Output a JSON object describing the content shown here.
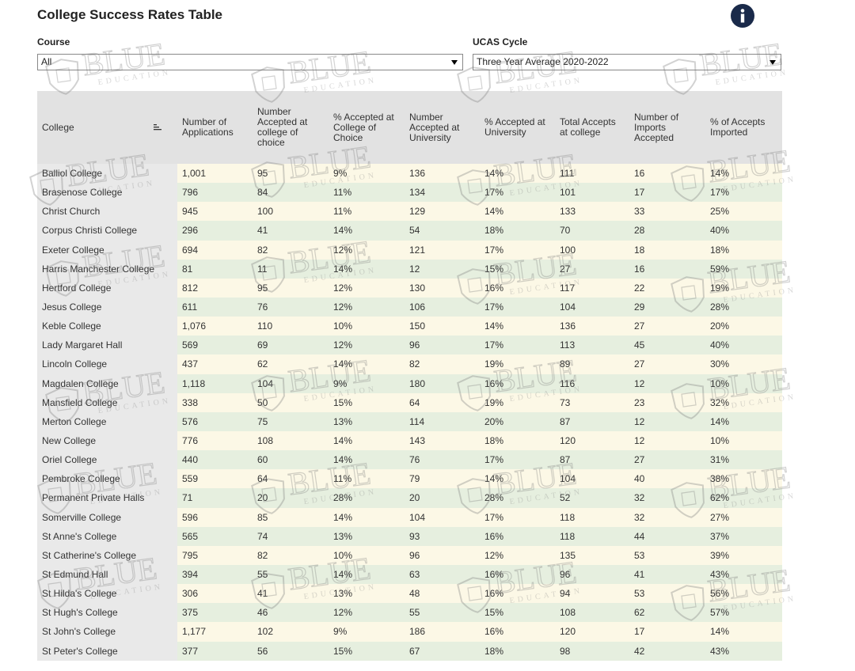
{
  "header": {
    "title": "College Success Rates Table"
  },
  "filters": [
    {
      "label": "Course",
      "value": "All"
    },
    {
      "label": "UCAS Cycle",
      "value": "Three Year Average 2020-2022"
    }
  ],
  "watermark": {
    "brand": "BLUE",
    "tagline": "EDUCATION"
  },
  "table": {
    "headers": [
      "College",
      "Number of Applications",
      "Number Accepted at college of choice",
      "% Accepted at College of Choice",
      "Number Accepted at University",
      "% Accepted at University",
      "Total Accepts at college",
      "Number of Imports Accepted",
      "% of Accepts Imported"
    ],
    "rows": [
      [
        "Balliol College",
        "1,001",
        "95",
        "9%",
        "136",
        "14%",
        "111",
        "16",
        "14%"
      ],
      [
        "Brasenose College",
        "796",
        "84",
        "11%",
        "134",
        "17%",
        "101",
        "17",
        "17%"
      ],
      [
        "Christ Church",
        "945",
        "100",
        "11%",
        "129",
        "14%",
        "133",
        "33",
        "25%"
      ],
      [
        "Corpus Christi College",
        "296",
        "41",
        "14%",
        "54",
        "18%",
        "70",
        "28",
        "40%"
      ],
      [
        "Exeter College",
        "694",
        "82",
        "12%",
        "121",
        "17%",
        "100",
        "18",
        "18%"
      ],
      [
        "Harris Manchester College",
        "81",
        "11",
        "14%",
        "12",
        "15%",
        "27",
        "16",
        "59%"
      ],
      [
        "Hertford College",
        "812",
        "95",
        "12%",
        "130",
        "16%",
        "117",
        "22",
        "19%"
      ],
      [
        "Jesus College",
        "611",
        "76",
        "12%",
        "106",
        "17%",
        "104",
        "29",
        "28%"
      ],
      [
        "Keble College",
        "1,076",
        "110",
        "10%",
        "150",
        "14%",
        "136",
        "27",
        "20%"
      ],
      [
        "Lady Margaret Hall",
        "569",
        "69",
        "12%",
        "96",
        "17%",
        "113",
        "45",
        "40%"
      ],
      [
        "Lincoln College",
        "437",
        "62",
        "14%",
        "82",
        "19%",
        "89",
        "27",
        "30%"
      ],
      [
        "Magdalen College",
        "1,118",
        "104",
        "9%",
        "180",
        "16%",
        "116",
        "12",
        "10%"
      ],
      [
        "Mansfield College",
        "338",
        "50",
        "15%",
        "64",
        "19%",
        "73",
        "23",
        "32%"
      ],
      [
        "Merton College",
        "576",
        "75",
        "13%",
        "114",
        "20%",
        "87",
        "12",
        "14%"
      ],
      [
        "New College",
        "776",
        "108",
        "14%",
        "143",
        "18%",
        "120",
        "12",
        "10%"
      ],
      [
        "Oriel College",
        "440",
        "60",
        "14%",
        "76",
        "17%",
        "87",
        "27",
        "31%"
      ],
      [
        "Pembroke College",
        "559",
        "64",
        "11%",
        "79",
        "14%",
        "104",
        "40",
        "38%"
      ],
      [
        "Permanent Private Halls",
        "71",
        "20",
        "28%",
        "20",
        "28%",
        "52",
        "32",
        "62%"
      ],
      [
        "Somerville College",
        "596",
        "85",
        "14%",
        "104",
        "17%",
        "118",
        "32",
        "27%"
      ],
      [
        "St Anne's College",
        "565",
        "74",
        "13%",
        "93",
        "16%",
        "118",
        "44",
        "37%"
      ],
      [
        "St Catherine's College",
        "795",
        "82",
        "10%",
        "96",
        "12%",
        "135",
        "53",
        "39%"
      ],
      [
        "St Edmund Hall",
        "394",
        "55",
        "14%",
        "63",
        "16%",
        "96",
        "41",
        "43%"
      ],
      [
        "St Hilda's College",
        "306",
        "41",
        "13%",
        "48",
        "16%",
        "94",
        "53",
        "56%"
      ],
      [
        "St Hugh's College",
        "375",
        "46",
        "12%",
        "55",
        "15%",
        "108",
        "62",
        "57%"
      ],
      [
        "St John's College",
        "1,177",
        "102",
        "9%",
        "186",
        "16%",
        "120",
        "17",
        "14%"
      ],
      [
        "St Peter's College",
        "377",
        "56",
        "15%",
        "67",
        "18%",
        "98",
        "42",
        "43%"
      ]
    ]
  }
}
